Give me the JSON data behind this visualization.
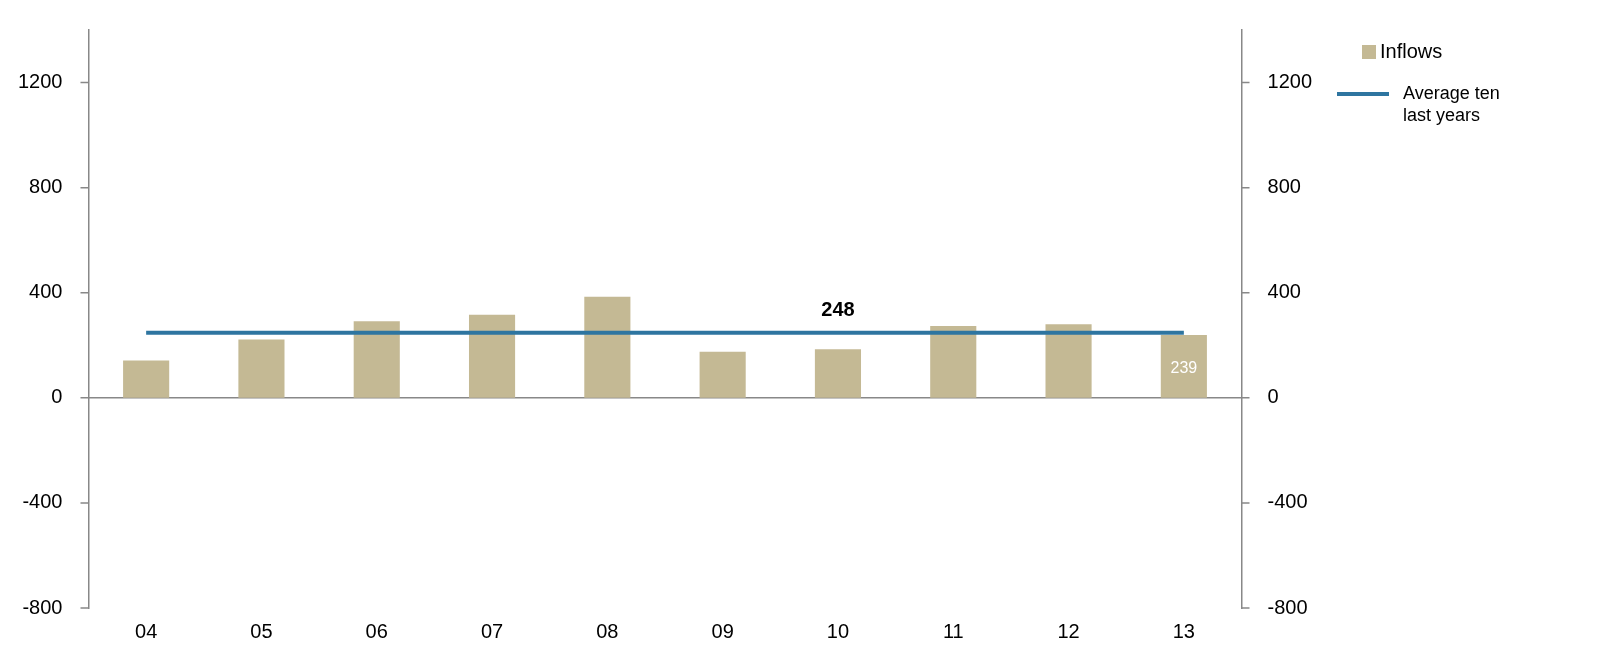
{
  "chart_data": {
    "type": "bar",
    "categories": [
      "04",
      "05",
      "06",
      "07",
      "08",
      "09",
      "10",
      "11",
      "12",
      "13"
    ],
    "series": [
      {
        "name": "Inflows",
        "color": "#c4b994",
        "values": [
          142,
          222,
          291,
          316,
          385,
          175,
          185,
          273,
          280,
          239
        ],
        "value_labels": [
          null,
          null,
          null,
          null,
          null,
          null,
          null,
          null,
          null,
          "239"
        ]
      },
      {
        "name": "Average ten last years",
        "type": "line",
        "color": "#2e75a0",
        "values": [
          248,
          248,
          248,
          248,
          248,
          248,
          248,
          248,
          248,
          248
        ]
      }
    ],
    "ylim": [
      -800,
      1400
    ],
    "yticks": [
      -800,
      -400,
      0,
      400,
      800,
      1200
    ],
    "y2lim": [
      -800,
      1400
    ],
    "y2ticks": [
      -800,
      -400,
      0,
      400,
      800,
      1200
    ],
    "annotations": [
      {
        "text": "248",
        "x": "10",
        "y": 248
      }
    ],
    "legend": "right",
    "marker": "none"
  }
}
